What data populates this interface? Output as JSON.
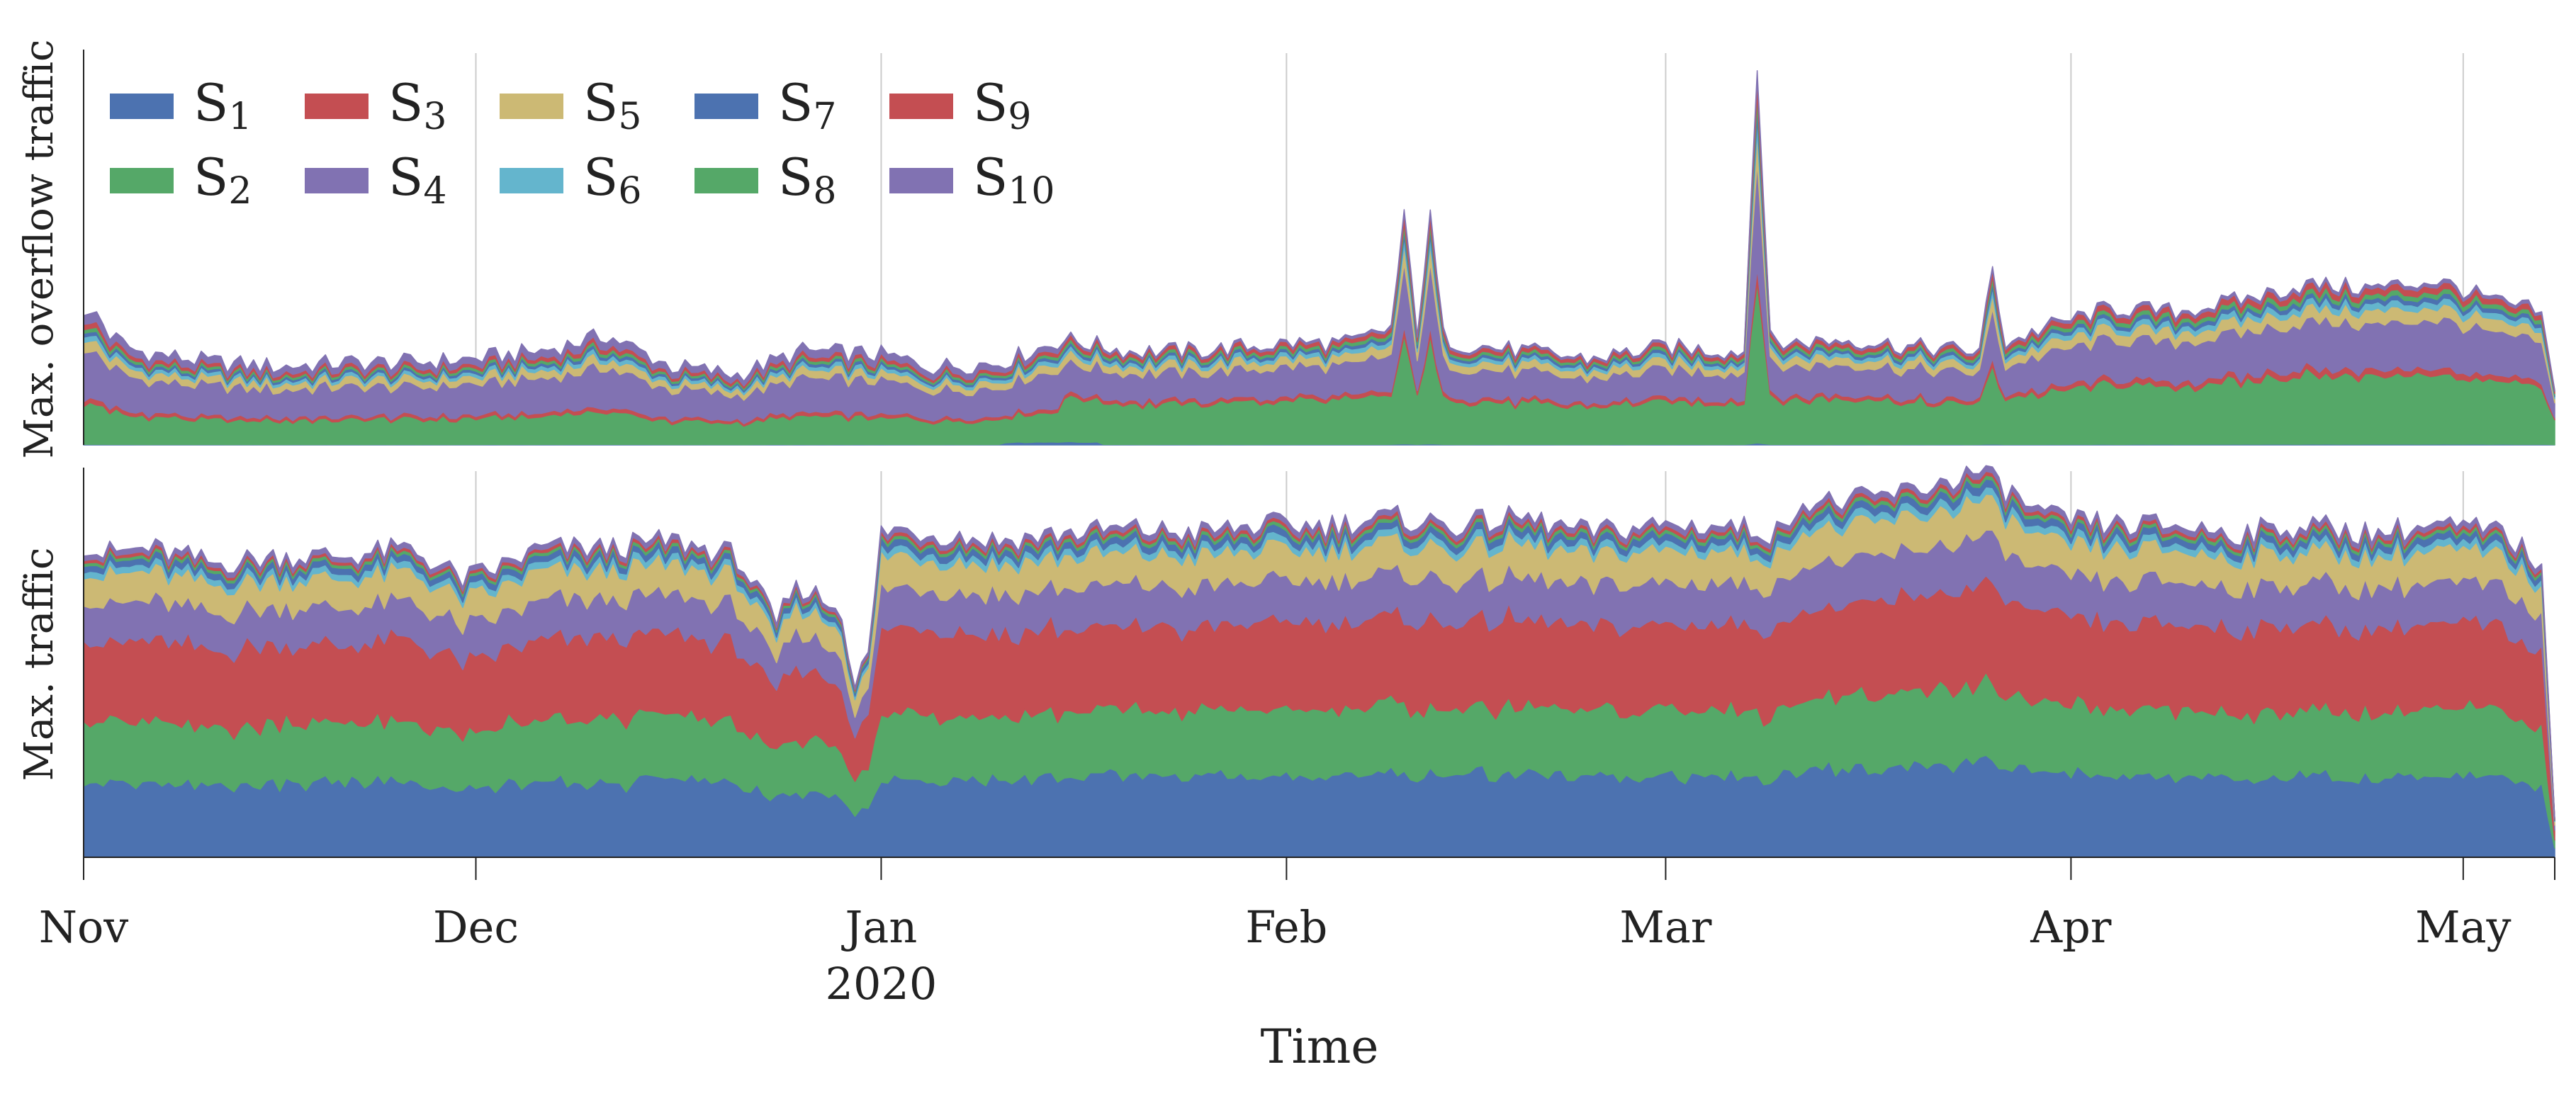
{
  "chart_data": {
    "type": "area",
    "stacked": true,
    "xlabel": "Time",
    "year_label": "2020",
    "months": [
      "Nov",
      "Dec",
      "Jan",
      "Feb",
      "Mar",
      "Apr",
      "May"
    ],
    "x_range_days": [
      0,
      189
    ],
    "month_start_days": [
      0,
      30,
      61,
      92,
      121,
      152,
      182
    ],
    "legend": {
      "placement": "top-left",
      "entries": [
        {
          "base": "S",
          "sub": "1",
          "color": "#4c72b0"
        },
        {
          "base": "S",
          "sub": "2",
          "color": "#55a868"
        },
        {
          "base": "S",
          "sub": "3",
          "color": "#c44e52"
        },
        {
          "base": "S",
          "sub": "4",
          "color": "#8172b2"
        },
        {
          "base": "S",
          "sub": "5",
          "color": "#ccb974"
        },
        {
          "base": "S",
          "sub": "6",
          "color": "#64b5cd"
        },
        {
          "base": "S",
          "sub": "7",
          "color": "#4c72b0"
        },
        {
          "base": "S",
          "sub": "8",
          "color": "#55a868"
        },
        {
          "base": "S",
          "sub": "9",
          "color": "#c44e52"
        },
        {
          "base": "S",
          "sub": "10",
          "color": "#8172b2"
        }
      ]
    },
    "panels": [
      {
        "ylabel": "Max. overflow traffic",
        "y_range": [
          0,
          100
        ],
        "series_order": [
          "S1",
          "S2",
          "S3",
          "S4",
          "S5",
          "S6",
          "S7",
          "S8",
          "S9",
          "S10"
        ],
        "series_colors": [
          "#4c72b0",
          "#55a868",
          "#c44e52",
          "#8172b2",
          "#ccb974",
          "#64b5cd",
          "#4c72b0",
          "#55a868",
          "#c44e52",
          "#8172b2"
        ],
        "total_key_days": [
          0,
          1,
          2,
          4,
          6,
          10,
          15,
          20,
          25,
          30,
          35,
          40,
          45,
          50,
          55,
          61,
          65,
          70,
          75,
          80,
          85,
          92,
          97,
          100,
          101,
          102,
          103,
          104,
          105,
          110,
          115,
          121,
          126,
          127,
          128,
          129,
          130,
          135,
          140,
          145,
          146,
          147,
          150,
          155,
          160,
          165,
          170,
          175,
          180,
          185,
          188,
          189
        ],
        "total_key_values": [
          33,
          34,
          28,
          24,
          23,
          21,
          20,
          21,
          21,
          22,
          24,
          28,
          20,
          18,
          24,
          23,
          20,
          21,
          27,
          24,
          24,
          26,
          26,
          30,
          58,
          30,
          58,
          28,
          26,
          24,
          22,
          25,
          24,
          24,
          98,
          27,
          26,
          27,
          25,
          24,
          45,
          26,
          30,
          35,
          34,
          37,
          41,
          40,
          42,
          36,
          34,
          14
        ]
      },
      {
        "ylabel": "Max. traffic",
        "y_range": [
          0,
          100
        ],
        "series_order": [
          "S1",
          "S2",
          "S3",
          "S4",
          "S5",
          "S6",
          "S7",
          "S8",
          "S9",
          "S10"
        ],
        "series_colors": [
          "#4c72b0",
          "#55a868",
          "#c44e52",
          "#8172b2",
          "#ccb974",
          "#64b5cd",
          "#4c72b0",
          "#55a868",
          "#c44e52",
          "#8172b2"
        ],
        "total_key_days": [
          0,
          5,
          10,
          15,
          20,
          25,
          29,
          31,
          35,
          40,
          45,
          50,
          53,
          54,
          55,
          58,
          59,
          60,
          61,
          62,
          65,
          70,
          75,
          80,
          85,
          90,
          95,
          100,
          105,
          110,
          115,
          120,
          125,
          130,
          131,
          135,
          140,
          145,
          150,
          155,
          160,
          165,
          170,
          175,
          180,
          185,
          188,
          189
        ],
        "total_key_values": [
          78,
          80,
          76,
          78,
          78,
          80,
          72,
          74,
          80,
          80,
          82,
          78,
          60,
          68,
          70,
          64,
          45,
          52,
          84,
          85,
          84,
          82,
          84,
          85,
          84,
          86,
          86,
          88,
          86,
          88,
          84,
          86,
          86,
          84,
          92,
          92,
          95,
          100,
          88,
          86,
          86,
          84,
          86,
          84,
          86,
          84,
          76,
          10
        ]
      }
    ]
  }
}
